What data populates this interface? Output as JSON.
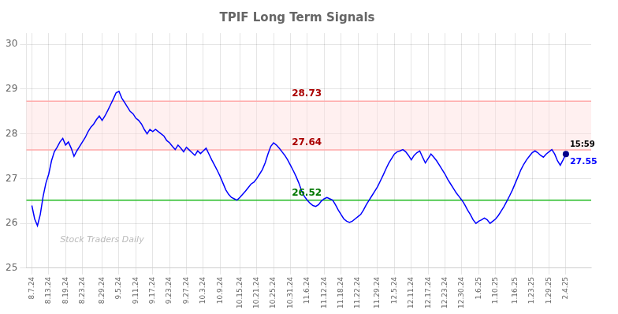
{
  "chart_data": {
    "type": "line",
    "title": "TPIF Long Term Signals",
    "categories": [
      "8.7.24",
      null,
      null,
      null,
      null,
      null,
      "8.13.24",
      null,
      null,
      null,
      null,
      null,
      "8.19.24",
      null,
      null,
      null,
      null,
      null,
      "8.23.24",
      null,
      null,
      null,
      null,
      null,
      null,
      "8.29.24",
      null,
      null,
      null,
      null,
      null,
      "9.5.24",
      null,
      null,
      null,
      null,
      null,
      "9.11.24",
      null,
      null,
      null,
      null,
      null,
      "9.17.24",
      null,
      null,
      null,
      null,
      null,
      "9.23.24",
      null,
      null,
      null,
      null,
      null,
      "9.27.24",
      null,
      null,
      null,
      null,
      null,
      "10.3.24",
      null,
      null,
      null,
      null,
      null,
      "10.9.24",
      null,
      null,
      null,
      null,
      null,
      null,
      "10.15.24",
      null,
      null,
      null,
      null,
      null,
      "10.21.24",
      null,
      null,
      null,
      null,
      null,
      "10.25.24",
      null,
      null,
      null,
      null,
      null,
      "10.31.24",
      null,
      null,
      null,
      null,
      null,
      "11.6.24",
      null,
      null,
      null,
      null,
      null,
      "11.12.24",
      null,
      null,
      null,
      null,
      null,
      "11.18.24",
      null,
      null,
      null,
      null,
      null,
      "11.22.24",
      null,
      null,
      null,
      null,
      null,
      null,
      "11.29.24",
      null,
      null,
      null,
      null,
      null,
      "12.5.24",
      null,
      null,
      null,
      null,
      null,
      "12.11.24",
      null,
      null,
      null,
      null,
      null,
      "12.17.24",
      null,
      null,
      null,
      null,
      null,
      "12.23.24",
      null,
      null,
      null,
      null,
      null,
      "12.30.24",
      null,
      null,
      null,
      null,
      null,
      "1.6.25",
      null,
      null,
      null,
      null,
      null,
      "1.10.25",
      null,
      null,
      null,
      null,
      null,
      null,
      "1.16.25",
      null,
      null,
      null,
      null,
      null,
      "1.23.25",
      null,
      null,
      null,
      null,
      null,
      "1.29.25",
      null,
      null,
      null,
      null,
      null,
      "2.4.25"
    ],
    "values": [
      26.4,
      26.1,
      25.95,
      26.2,
      26.6,
      26.9,
      27.1,
      27.4,
      27.6,
      27.7,
      27.82,
      27.9,
      27.75,
      27.82,
      27.68,
      27.5,
      27.62,
      27.72,
      27.82,
      27.92,
      28.05,
      28.15,
      28.22,
      28.32,
      28.4,
      28.3,
      28.4,
      28.52,
      28.65,
      28.78,
      28.92,
      28.95,
      28.8,
      28.7,
      28.6,
      28.5,
      28.45,
      28.35,
      28.3,
      28.22,
      28.1,
      28.0,
      28.1,
      28.05,
      28.1,
      28.05,
      28.0,
      27.95,
      27.85,
      27.8,
      27.72,
      27.65,
      27.75,
      27.68,
      27.6,
      27.7,
      27.64,
      27.58,
      27.52,
      27.62,
      27.56,
      27.62,
      27.68,
      27.55,
      27.42,
      27.3,
      27.18,
      27.05,
      26.9,
      26.75,
      26.65,
      26.58,
      26.55,
      26.52,
      26.58,
      26.65,
      26.72,
      26.8,
      26.88,
      26.92,
      27.0,
      27.1,
      27.2,
      27.35,
      27.55,
      27.72,
      27.8,
      27.75,
      27.68,
      27.6,
      27.52,
      27.42,
      27.3,
      27.18,
      27.05,
      26.9,
      26.72,
      26.6,
      26.52,
      26.45,
      26.4,
      26.38,
      26.42,
      26.5,
      26.55,
      26.58,
      26.55,
      26.52,
      26.42,
      26.3,
      26.2,
      26.1,
      26.05,
      26.02,
      26.05,
      26.1,
      26.15,
      26.2,
      26.3,
      26.42,
      26.52,
      26.62,
      26.72,
      26.82,
      26.95,
      27.08,
      27.22,
      27.35,
      27.45,
      27.55,
      27.6,
      27.62,
      27.65,
      27.6,
      27.52,
      27.42,
      27.52,
      27.58,
      27.62,
      27.48,
      27.35,
      27.45,
      27.55,
      27.48,
      27.4,
      27.3,
      27.2,
      27.1,
      26.98,
      26.88,
      26.78,
      26.68,
      26.6,
      26.52,
      26.42,
      26.3,
      26.2,
      26.08,
      26.0,
      26.05,
      26.08,
      26.12,
      26.08,
      26.0,
      26.05,
      26.1,
      26.18,
      26.28,
      26.38,
      26.5,
      26.62,
      26.75,
      26.9,
      27.05,
      27.2,
      27.32,
      27.42,
      27.5,
      27.58,
      27.62,
      27.58,
      27.52,
      27.48,
      27.55,
      27.6,
      27.65,
      27.55,
      27.4,
      27.3,
      27.42,
      27.55
    ],
    "color": "#0000ff",
    "ylim": [
      25.0,
      30.25
    ],
    "yticks": [
      25,
      26,
      27,
      28,
      29,
      30
    ],
    "grid": true,
    "band": {
      "from": 27.64,
      "to": 28.73,
      "color": "#ffdddd"
    },
    "annotations": [
      {
        "text": "28.73",
        "y": 28.73,
        "color": "#aa0000",
        "line_color": "#ffaaaa"
      },
      {
        "text": "27.64",
        "y": 27.64,
        "color": "#aa0000",
        "line_color": "#ffaaaa"
      },
      {
        "text": "26.52",
        "y": 26.52,
        "color": "#007700",
        "line_color": "#22bb22"
      }
    ],
    "last_point": {
      "time": "15:59",
      "label": "27.55",
      "color": "#00008b"
    },
    "watermark": "Stock Traders Daily"
  }
}
